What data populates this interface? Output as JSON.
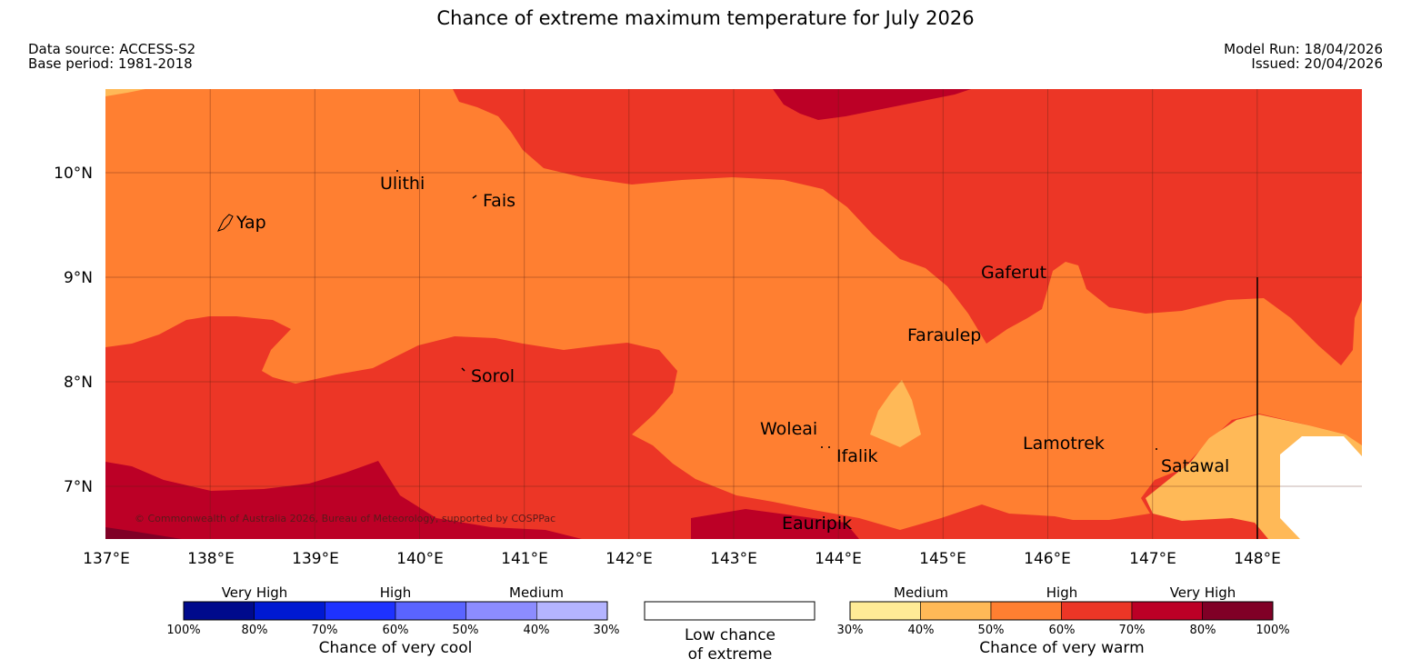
{
  "header": {
    "title": "Chance of extreme maximum temperature for July 2026",
    "data_source": "Data source: ACCESS-S2",
    "base_period": "Base period: 1981-2018",
    "model_run": "Model Run: 18/04/2026",
    "issued": "Issued: 20/04/2026"
  },
  "map": {
    "lat_labels": [
      "10°N",
      "9°N",
      "8°N",
      "7°N"
    ],
    "lon_labels": [
      "137°E",
      "138°E",
      "139°E",
      "140°E",
      "141°E",
      "142°E",
      "143°E",
      "144°E",
      "145°E",
      "146°E",
      "147°E",
      "148°E"
    ],
    "places": {
      "ulithi": "Ulithi",
      "fais": "Fais",
      "yap": "Yap",
      "gaferut": "Gaferut",
      "faraulep": "Faraulep",
      "sorol": "Sorol",
      "woleai": "Woleai",
      "ifalik": "Ifalik",
      "lamotrek": "Lamotrek",
      "satawal": "Satawal",
      "eauripik": "Eauripik"
    },
    "copyright": "© Commonwealth of Australia 2026, Bureau of Meteorology, supported by COSPPac"
  },
  "legend": {
    "cool": {
      "category_labels": [
        "Very High",
        "High",
        "Medium"
      ],
      "percent_labels": [
        "100%",
        "80%",
        "70%",
        "60%",
        "50%",
        "40%",
        "30%"
      ],
      "title": "Chance of very cool",
      "colors": [
        "#000a8c",
        "#0019d2",
        "#1e32ff",
        "#5a64ff",
        "#8c8cff",
        "#b4b4ff"
      ]
    },
    "low": {
      "title_line1": "Low chance",
      "title_line2": "of extreme"
    },
    "warm": {
      "category_labels": [
        "Medium",
        "High",
        "Very High"
      ],
      "percent_labels": [
        "30%",
        "40%",
        "50%",
        "60%",
        "70%",
        "80%",
        "100%"
      ],
      "title": "Chance of very warm",
      "colors": [
        "#ffeb96",
        "#ffb957",
        "#ff7f31",
        "#ec3626",
        "#bc0026",
        "#800026"
      ]
    }
  }
}
